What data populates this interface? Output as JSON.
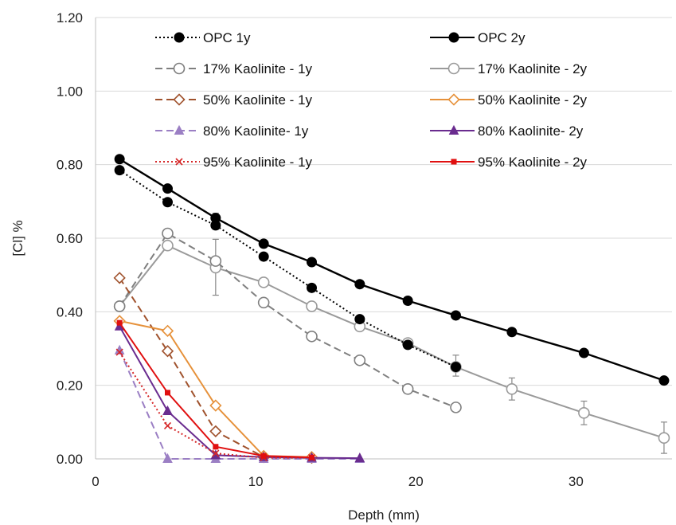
{
  "chart_data": {
    "type": "line",
    "title": "",
    "xlabel": "Depth (mm)",
    "ylabel": "[Cl] %",
    "xlim": [
      0,
      36
    ],
    "ylim": [
      0,
      1.2
    ],
    "x_ticks": [
      "0",
      "10",
      "20",
      "30"
    ],
    "y_ticks": [
      "0.00",
      "0.20",
      "0.40",
      "0.60",
      "0.80",
      "1.00",
      "1.20"
    ],
    "grid": "horizontal",
    "legend_position": "top",
    "series": [
      {
        "name": "OPC 1y",
        "color": "#000000",
        "dash": "dotted",
        "marker": "filled-circle",
        "x": [
          1.5,
          4.5,
          7.5,
          10.5,
          13.5,
          16.5,
          19.5,
          22.5
        ],
        "y": [
          0.785,
          0.698,
          0.635,
          0.55,
          0.465,
          0.38,
          0.31,
          0.25
        ]
      },
      {
        "name": "OPC 2y",
        "color": "#000000",
        "dash": "solid",
        "marker": "filled-circle",
        "x": [
          1.5,
          4.5,
          7.5,
          10.5,
          13.5,
          16.5,
          19.5,
          22.5,
          26,
          30.5,
          35.5
        ],
        "y": [
          0.815,
          0.735,
          0.655,
          0.585,
          0.535,
          0.475,
          0.43,
          0.39,
          0.345,
          0.288,
          0.213
        ]
      },
      {
        "name": "17% Kaolinite - 1y",
        "color": "#7f7f7f",
        "dash": "dashed",
        "marker": "open-circle",
        "x": [
          1.5,
          4.5,
          7.5,
          10.5,
          13.5,
          16.5,
          19.5,
          22.5
        ],
        "y": [
          0.415,
          0.613,
          0.538,
          0.425,
          0.333,
          0.268,
          0.19,
          0.14
        ]
      },
      {
        "name": "17% Kaolinite - 2y",
        "color": "#9a9a9a",
        "dash": "solid",
        "marker": "open-circle",
        "x": [
          1.5,
          4.5,
          7.5,
          10.5,
          13.5,
          16.5,
          19.5,
          22.5,
          26,
          30.5,
          35.5
        ],
        "y": [
          0.415,
          0.58,
          0.52,
          0.48,
          0.415,
          0.36,
          0.315,
          0.25,
          0.19,
          0.125,
          0.057
        ]
      },
      {
        "name": "50% Kaolinite - 1y",
        "color": "#a0522d",
        "dash": "dashed",
        "marker": "open-diamond",
        "x": [
          1.5,
          4.5,
          7.5,
          10.5,
          13.5
        ],
        "y": [
          0.492,
          0.293,
          0.075,
          0.005,
          0.003
        ]
      },
      {
        "name": "50% Kaolinite - 2y",
        "color": "#e6913a",
        "dash": "solid",
        "marker": "open-diamond",
        "x": [
          1.5,
          4.5,
          7.5,
          10.5,
          13.5
        ],
        "y": [
          0.375,
          0.348,
          0.145,
          0.008,
          0.005
        ]
      },
      {
        "name": "80% Kaolinite- 1y",
        "color": "#9b7fc4",
        "dash": "dashed",
        "marker": "filled-triangle",
        "x": [
          1.5,
          4.5,
          7.5,
          10.5,
          13.5,
          16.5
        ],
        "y": [
          0.295,
          0.0,
          0.0,
          0.0,
          0.0,
          0.0
        ]
      },
      {
        "name": "80% Kaolinite- 2y",
        "color": "#6a2c8f",
        "dash": "solid",
        "marker": "filled-triangle",
        "x": [
          1.5,
          4.5,
          7.5,
          10.5,
          13.5,
          16.5
        ],
        "y": [
          0.36,
          0.13,
          0.01,
          0.005,
          0.003,
          0.002
        ]
      },
      {
        "name": "95% Kaolinite - 1y",
        "color": "#d62728",
        "dash": "dotted",
        "marker": "cross",
        "x": [
          1.5,
          4.5,
          7.5,
          10.5,
          13.5
        ],
        "y": [
          0.29,
          0.09,
          0.015,
          0.003,
          0.003
        ]
      },
      {
        "name": "95% Kaolinite - 2y",
        "color": "#e01010",
        "dash": "solid",
        "marker": "filled-square",
        "x": [
          1.5,
          4.5,
          7.5,
          10.5,
          13.5
        ],
        "y": [
          0.37,
          0.18,
          0.033,
          0.008,
          0.004
        ]
      }
    ],
    "error_bars": [
      {
        "series": "17% Kaolinite - 2y",
        "x": 7.5,
        "low": 0.445,
        "high": 0.597
      },
      {
        "series": "OPC 1y",
        "x": 7.5,
        "low": 0.625,
        "high": 0.668
      },
      {
        "series": "OPC 1y",
        "x": 22.5,
        "low": 0.225,
        "high": 0.282
      },
      {
        "series": "17% Kaolinite - 2y",
        "x": 26,
        "low": 0.16,
        "high": 0.22
      },
      {
        "series": "17% Kaolinite - 2y",
        "x": 30.5,
        "low": 0.093,
        "high": 0.157
      },
      {
        "series": "17% Kaolinite - 2y",
        "x": 35.5,
        "low": 0.015,
        "high": 0.1
      }
    ]
  }
}
